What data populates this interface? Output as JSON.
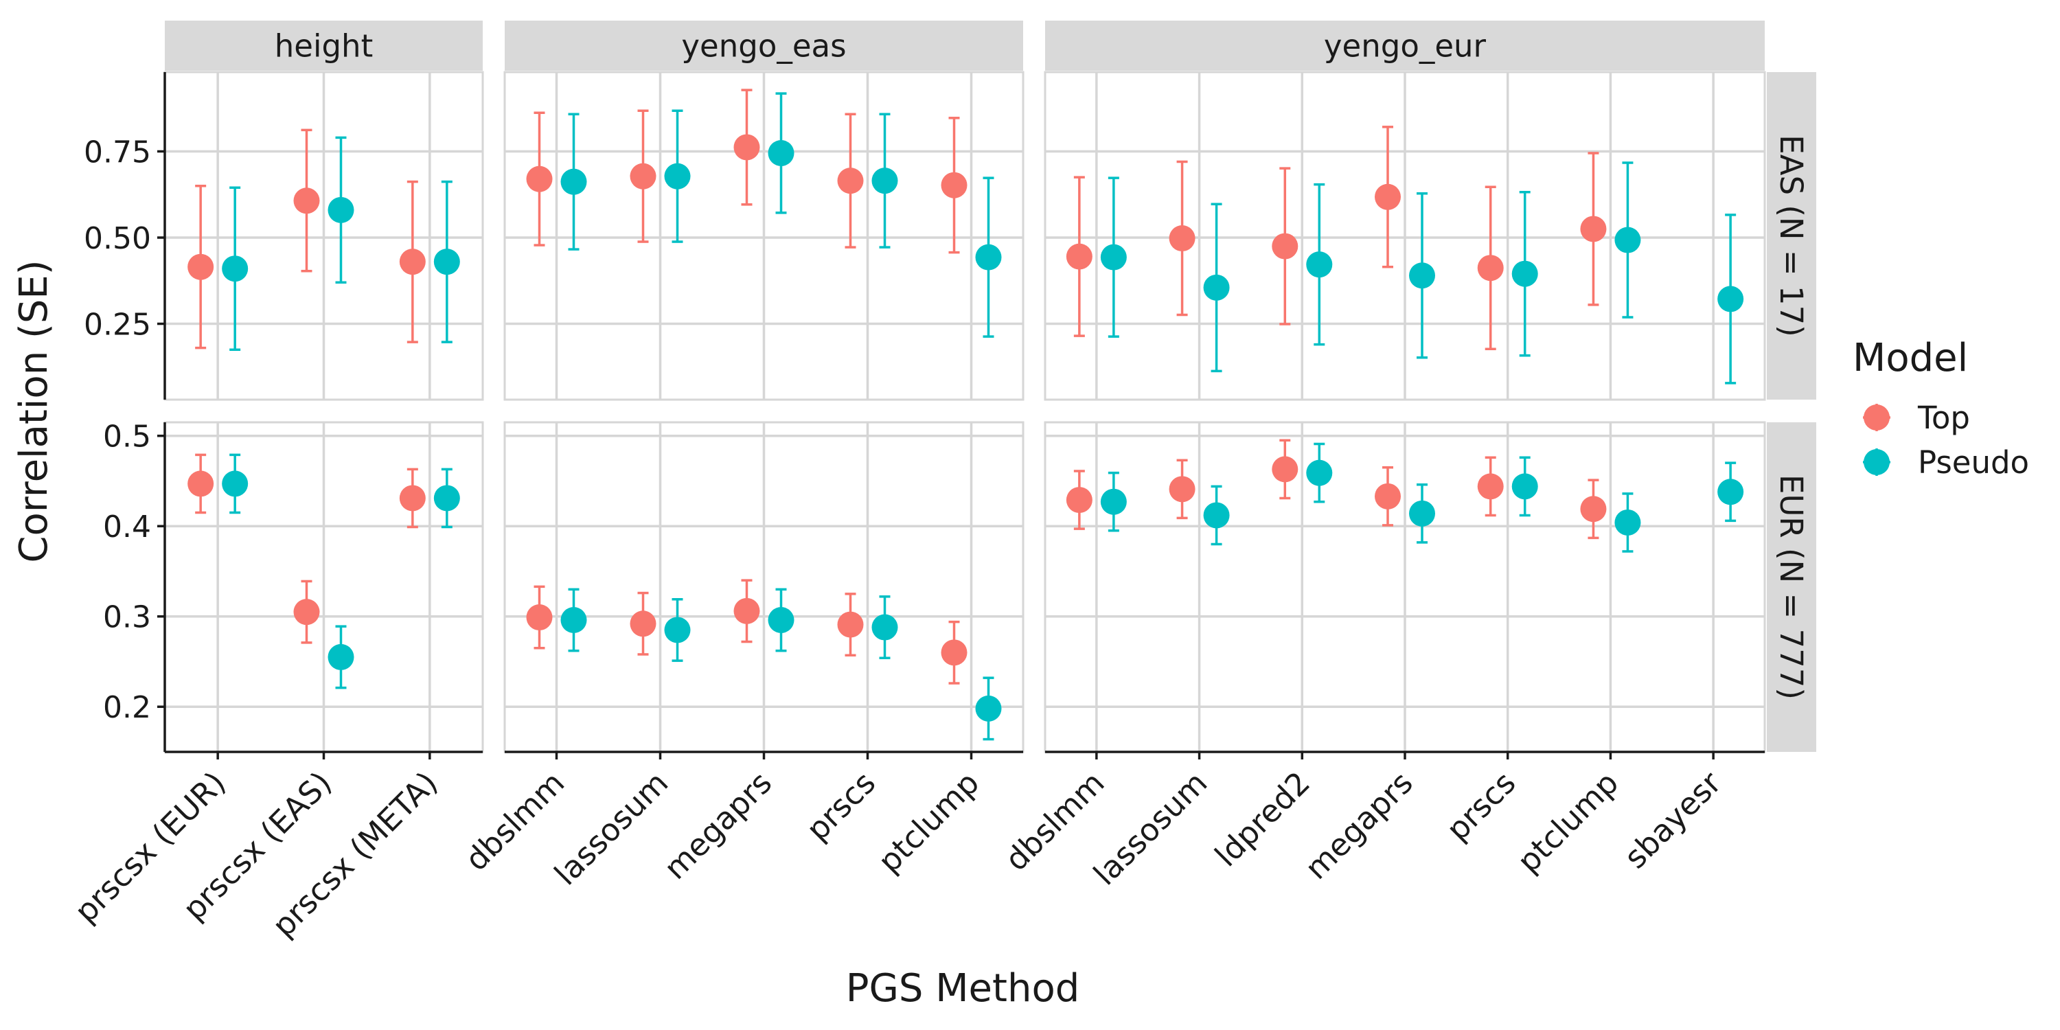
{
  "chart_data": {
    "type": "scatter",
    "subtype": "faceted point-range (dot with error bars)",
    "xlabel": "PGS Method",
    "ylabel": "Correlation (SE)",
    "legend": {
      "title": "Model",
      "placement": "right",
      "entries": [
        {
          "name": "Top",
          "color": "#F8766D"
        },
        {
          "name": "Pseudo",
          "color": "#00BFC4"
        }
      ]
    },
    "grid": true,
    "columns": [
      {
        "key": "height",
        "label": "height",
        "categories": [
          "prscsx (EUR)",
          "prscsx (EAS)",
          "prscsx (META)"
        ]
      },
      {
        "key": "yengo_eas",
        "label": "yengo_eas",
        "categories": [
          "dbslmm",
          "lassosum",
          "megaprs",
          "prscs",
          "ptclump"
        ]
      },
      {
        "key": "yengo_eur",
        "label": "yengo_eur",
        "categories": [
          "dbslmm",
          "lassosum",
          "ldpred2",
          "megaprs",
          "prscs",
          "ptclump",
          "sbayesr"
        ]
      }
    ],
    "rows": [
      {
        "key": "EAS",
        "label": "EAS (N = 17)",
        "ylim": [
          0.03,
          0.98
        ],
        "yticks": [
          0.25,
          0.5,
          0.75
        ],
        "ytick_labels": [
          "0.25",
          "0.50",
          "0.75"
        ],
        "panels": {
          "height": [
            {
              "category": "prscsx (EUR)",
              "series": "Top",
              "value": 0.415,
              "lower": 0.18,
              "upper": 0.65
            },
            {
              "category": "prscsx (EUR)",
              "series": "Pseudo",
              "value": 0.41,
              "lower": 0.175,
              "upper": 0.645
            },
            {
              "category": "prscsx (EAS)",
              "series": "Top",
              "value": 0.607,
              "lower": 0.403,
              "upper": 0.812
            },
            {
              "category": "prscsx (EAS)",
              "series": "Pseudo",
              "value": 0.58,
              "lower": 0.37,
              "upper": 0.79
            },
            {
              "category": "prscsx (META)",
              "series": "Top",
              "value": 0.43,
              "lower": 0.197,
              "upper": 0.662
            },
            {
              "category": "prscsx (META)",
              "series": "Pseudo",
              "value": 0.43,
              "lower": 0.197,
              "upper": 0.662
            }
          ],
          "yengo_eas": [
            {
              "category": "dbslmm",
              "series": "Top",
              "value": 0.67,
              "lower": 0.478,
              "upper": 0.862
            },
            {
              "category": "dbslmm",
              "series": "Pseudo",
              "value": 0.662,
              "lower": 0.466,
              "upper": 0.858
            },
            {
              "category": "lassosum",
              "series": "Top",
              "value": 0.678,
              "lower": 0.488,
              "upper": 0.868
            },
            {
              "category": "lassosum",
              "series": "Pseudo",
              "value": 0.678,
              "lower": 0.488,
              "upper": 0.868
            },
            {
              "category": "megaprs",
              "series": "Top",
              "value": 0.762,
              "lower": 0.596,
              "upper": 0.928
            },
            {
              "category": "megaprs",
              "series": "Pseudo",
              "value": 0.745,
              "lower": 0.572,
              "upper": 0.918
            },
            {
              "category": "prscs",
              "series": "Top",
              "value": 0.665,
              "lower": 0.472,
              "upper": 0.858
            },
            {
              "category": "prscs",
              "series": "Pseudo",
              "value": 0.665,
              "lower": 0.472,
              "upper": 0.858
            },
            {
              "category": "ptclump",
              "series": "Top",
              "value": 0.652,
              "lower": 0.457,
              "upper": 0.847
            },
            {
              "category": "ptclump",
              "series": "Pseudo",
              "value": 0.443,
              "lower": 0.213,
              "upper": 0.673
            }
          ],
          "yengo_eur": [
            {
              "category": "dbslmm",
              "series": "Top",
              "value": 0.445,
              "lower": 0.215,
              "upper": 0.675
            },
            {
              "category": "dbslmm",
              "series": "Pseudo",
              "value": 0.443,
              "lower": 0.213,
              "upper": 0.673
            },
            {
              "category": "lassosum",
              "series": "Top",
              "value": 0.498,
              "lower": 0.276,
              "upper": 0.72
            },
            {
              "category": "lassosum",
              "series": "Pseudo",
              "value": 0.355,
              "lower": 0.113,
              "upper": 0.597
            },
            {
              "category": "ldpred2",
              "series": "Top",
              "value": 0.475,
              "lower": 0.249,
              "upper": 0.701
            },
            {
              "category": "ldpred2",
              "series": "Pseudo",
              "value": 0.422,
              "lower": 0.19,
              "upper": 0.654
            },
            {
              "category": "megaprs",
              "series": "Top",
              "value": 0.618,
              "lower": 0.415,
              "upper": 0.821
            },
            {
              "category": "megaprs",
              "series": "Pseudo",
              "value": 0.39,
              "lower": 0.152,
              "upper": 0.628
            },
            {
              "category": "prscs",
              "series": "Top",
              "value": 0.412,
              "lower": 0.177,
              "upper": 0.647
            },
            {
              "category": "prscs",
              "series": "Pseudo",
              "value": 0.395,
              "lower": 0.158,
              "upper": 0.632
            },
            {
              "category": "ptclump",
              "series": "Top",
              "value": 0.525,
              "lower": 0.305,
              "upper": 0.745
            },
            {
              "category": "ptclump",
              "series": "Pseudo",
              "value": 0.493,
              "lower": 0.269,
              "upper": 0.717
            },
            {
              "category": "sbayesr",
              "series": "Pseudo",
              "value": 0.322,
              "lower": 0.078,
              "upper": 0.566
            }
          ]
        }
      },
      {
        "key": "EUR",
        "label": "EUR (N = 777)",
        "ylim": [
          0.15,
          0.515
        ],
        "yticks": [
          0.2,
          0.3,
          0.4,
          0.5
        ],
        "ytick_labels": [
          "0.2",
          "0.3",
          "0.4",
          "0.5"
        ],
        "panels": {
          "height": [
            {
              "category": "prscsx (EUR)",
              "series": "Top",
              "value": 0.447,
              "lower": 0.415,
              "upper": 0.479
            },
            {
              "category": "prscsx (EUR)",
              "series": "Pseudo",
              "value": 0.447,
              "lower": 0.415,
              "upper": 0.479
            },
            {
              "category": "prscsx (EAS)",
              "series": "Top",
              "value": 0.305,
              "lower": 0.271,
              "upper": 0.339
            },
            {
              "category": "prscsx (EAS)",
              "series": "Pseudo",
              "value": 0.255,
              "lower": 0.221,
              "upper": 0.289
            },
            {
              "category": "prscsx (META)",
              "series": "Top",
              "value": 0.431,
              "lower": 0.399,
              "upper": 0.463
            },
            {
              "category": "prscsx (META)",
              "series": "Pseudo",
              "value": 0.431,
              "lower": 0.399,
              "upper": 0.463
            }
          ],
          "yengo_eas": [
            {
              "category": "dbslmm",
              "series": "Top",
              "value": 0.299,
              "lower": 0.265,
              "upper": 0.333
            },
            {
              "category": "dbslmm",
              "series": "Pseudo",
              "value": 0.296,
              "lower": 0.262,
              "upper": 0.33
            },
            {
              "category": "lassosum",
              "series": "Top",
              "value": 0.292,
              "lower": 0.258,
              "upper": 0.326
            },
            {
              "category": "lassosum",
              "series": "Pseudo",
              "value": 0.285,
              "lower": 0.251,
              "upper": 0.319
            },
            {
              "category": "megaprs",
              "series": "Top",
              "value": 0.306,
              "lower": 0.272,
              "upper": 0.34
            },
            {
              "category": "megaprs",
              "series": "Pseudo",
              "value": 0.296,
              "lower": 0.262,
              "upper": 0.33
            },
            {
              "category": "prscs",
              "series": "Top",
              "value": 0.291,
              "lower": 0.257,
              "upper": 0.325
            },
            {
              "category": "prscs",
              "series": "Pseudo",
              "value": 0.288,
              "lower": 0.254,
              "upper": 0.322
            },
            {
              "category": "ptclump",
              "series": "Top",
              "value": 0.26,
              "lower": 0.226,
              "upper": 0.294
            },
            {
              "category": "ptclump",
              "series": "Pseudo",
              "value": 0.198,
              "lower": 0.164,
              "upper": 0.232
            }
          ],
          "yengo_eur": [
            {
              "category": "dbslmm",
              "series": "Top",
              "value": 0.429,
              "lower": 0.397,
              "upper": 0.461
            },
            {
              "category": "dbslmm",
              "series": "Pseudo",
              "value": 0.427,
              "lower": 0.395,
              "upper": 0.459
            },
            {
              "category": "lassosum",
              "series": "Top",
              "value": 0.441,
              "lower": 0.409,
              "upper": 0.473
            },
            {
              "category": "lassosum",
              "series": "Pseudo",
              "value": 0.412,
              "lower": 0.38,
              "upper": 0.444
            },
            {
              "category": "ldpred2",
              "series": "Top",
              "value": 0.463,
              "lower": 0.431,
              "upper": 0.495
            },
            {
              "category": "ldpred2",
              "series": "Pseudo",
              "value": 0.459,
              "lower": 0.427,
              "upper": 0.491
            },
            {
              "category": "megaprs",
              "series": "Top",
              "value": 0.433,
              "lower": 0.401,
              "upper": 0.465
            },
            {
              "category": "megaprs",
              "series": "Pseudo",
              "value": 0.414,
              "lower": 0.382,
              "upper": 0.446
            },
            {
              "category": "prscs",
              "series": "Top",
              "value": 0.444,
              "lower": 0.412,
              "upper": 0.476
            },
            {
              "category": "prscs",
              "series": "Pseudo",
              "value": 0.444,
              "lower": 0.412,
              "upper": 0.476
            },
            {
              "category": "ptclump",
              "series": "Top",
              "value": 0.419,
              "lower": 0.387,
              "upper": 0.451
            },
            {
              "category": "ptclump",
              "series": "Pseudo",
              "value": 0.404,
              "lower": 0.372,
              "upper": 0.436
            },
            {
              "category": "sbayesr",
              "series": "Pseudo",
              "value": 0.438,
              "lower": 0.406,
              "upper": 0.47
            }
          ]
        }
      }
    ]
  }
}
